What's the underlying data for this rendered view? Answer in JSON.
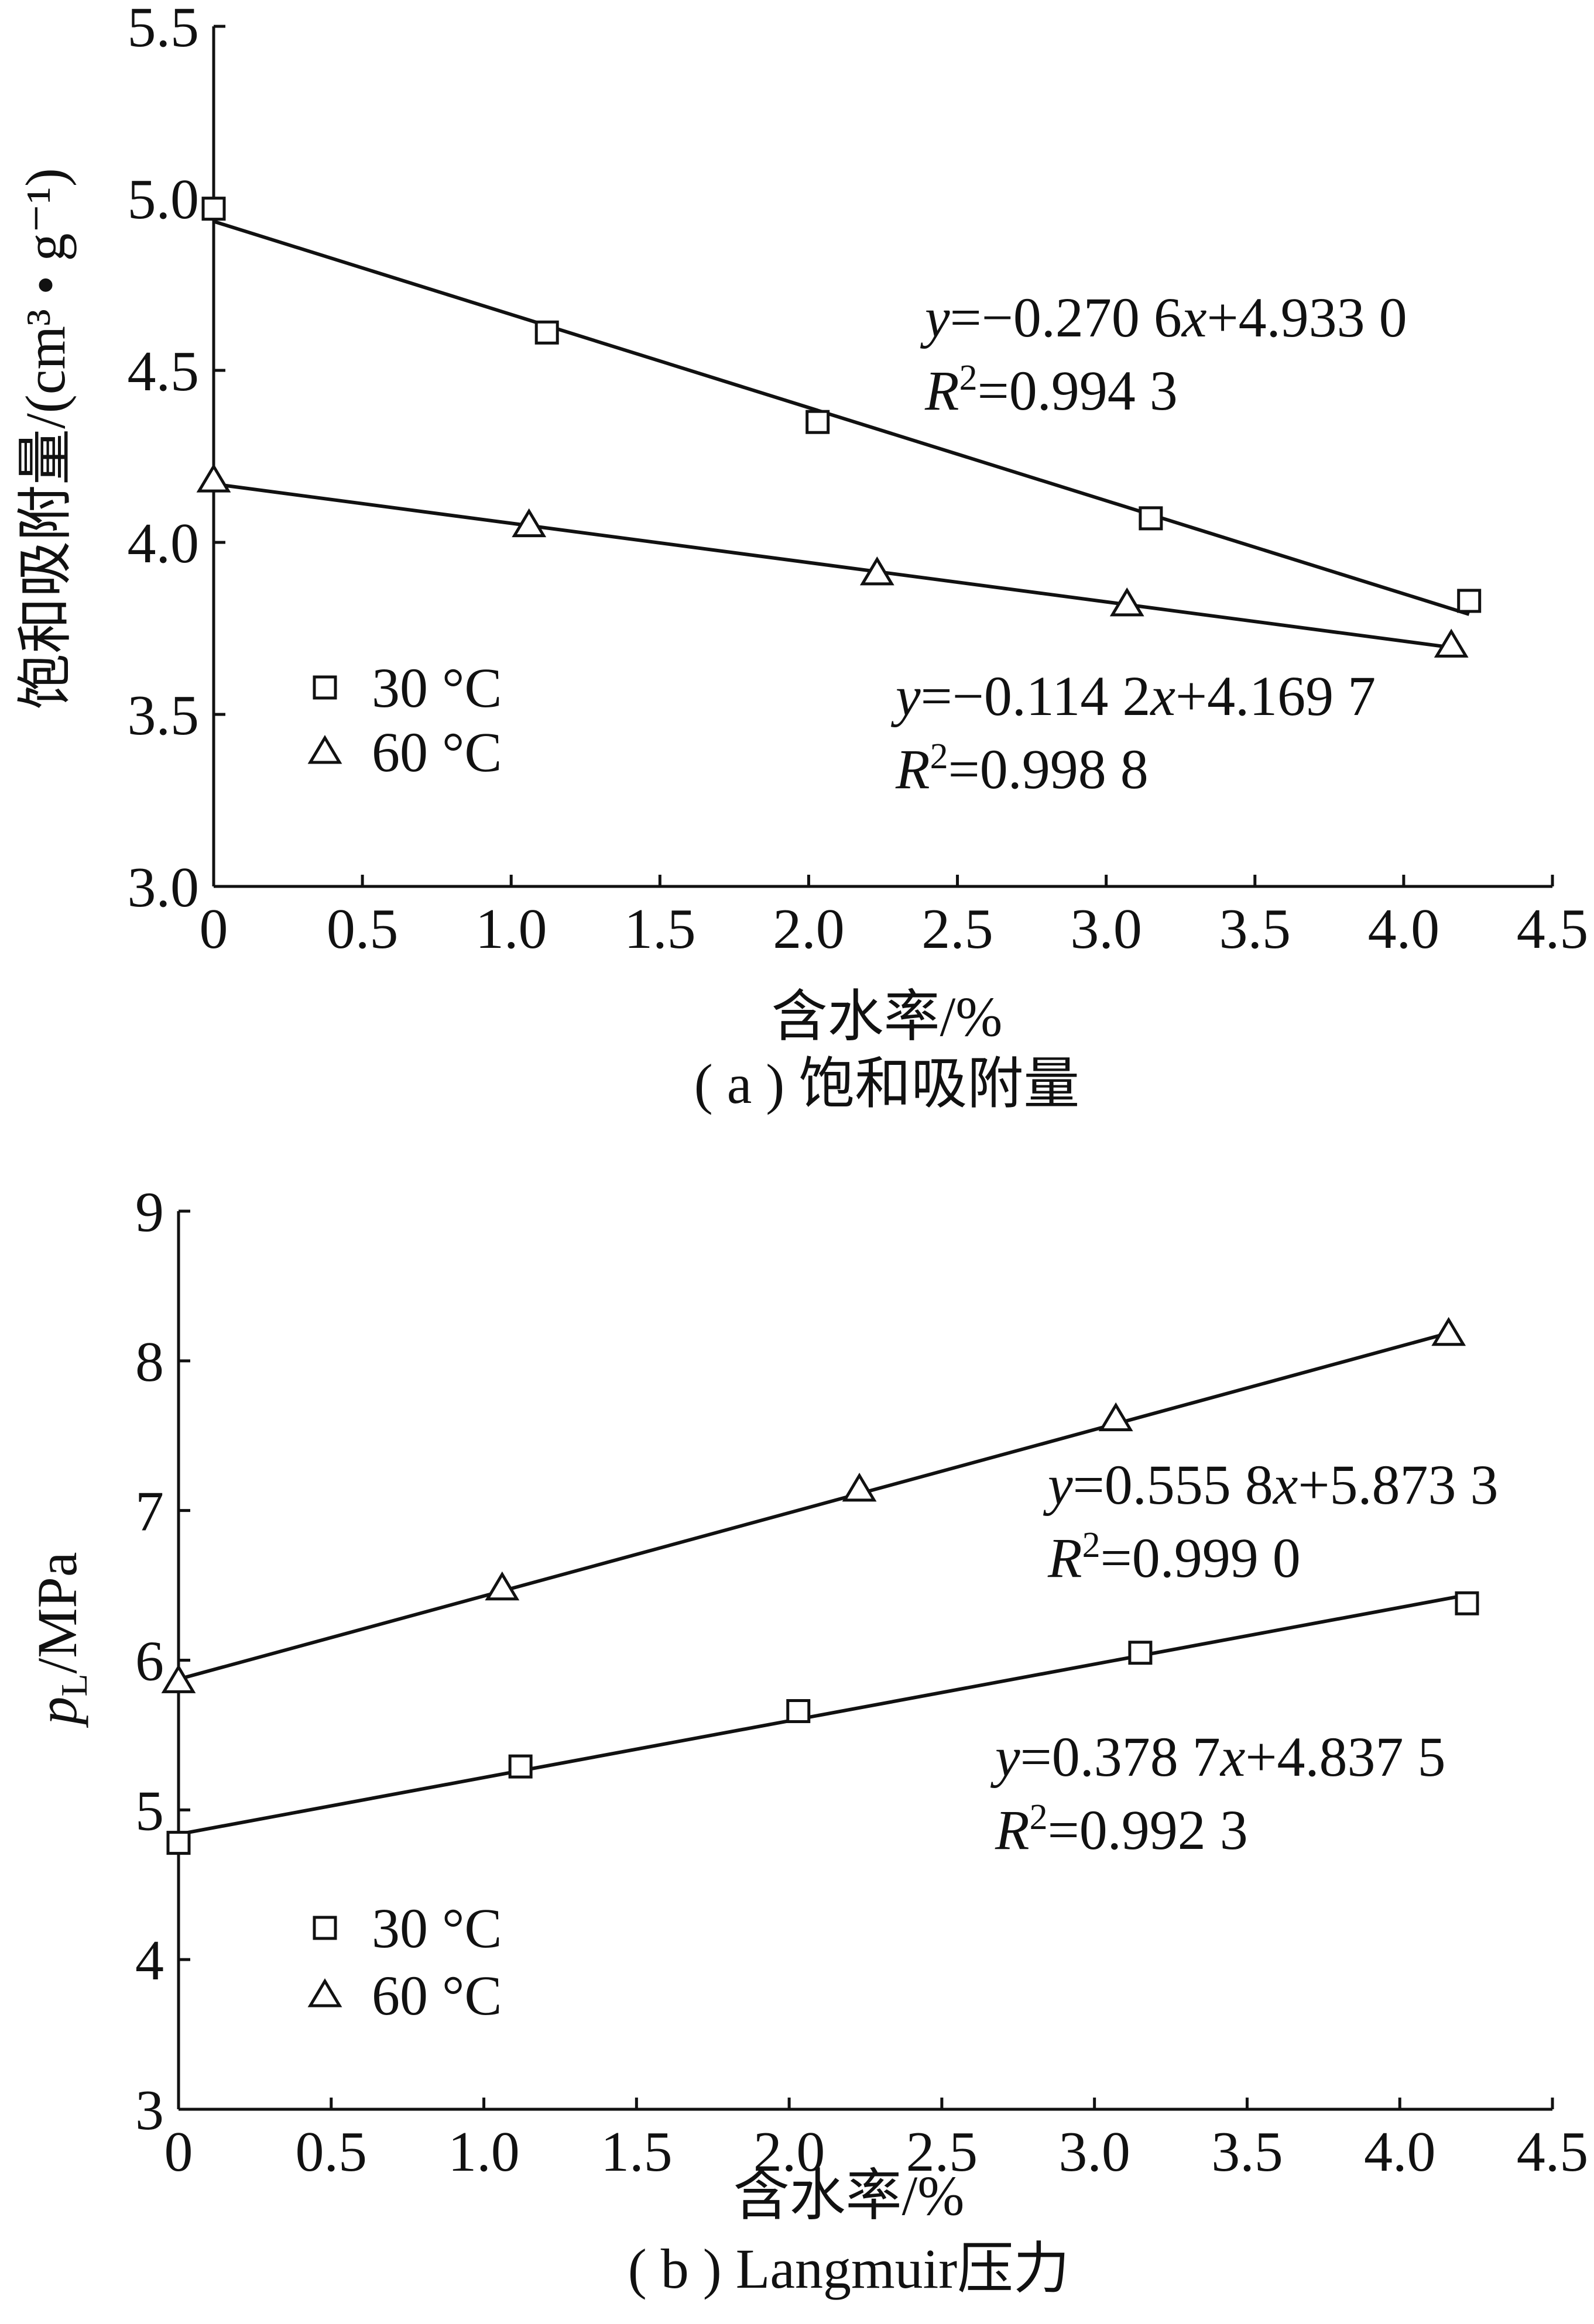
{
  "chart_data": [
    {
      "type": "scatter",
      "caption": "( a ) 饱和吸附量",
      "xlabel": "含水率/%",
      "ylabel": "饱和吸附量/(cm³ • g⁻¹)",
      "xlim": [
        0,
        4.5
      ],
      "ylim": [
        3.0,
        5.5
      ],
      "xticks": [
        "0",
        "0.5",
        "1.0",
        "1.5",
        "2.0",
        "2.5",
        "3.0",
        "3.5",
        "4.0",
        "4.5"
      ],
      "yticks": [
        "3.0",
        "3.5",
        "4.0",
        "4.5",
        "5.0",
        "5.5"
      ],
      "legend_position": "left-center",
      "series": [
        {
          "name": "30 °C",
          "marker": "square",
          "x": [
            0.0,
            1.12,
            2.03,
            3.15,
            4.22
          ],
          "y": [
            4.97,
            4.61,
            4.35,
            4.07,
            3.83
          ],
          "fit": {
            "slope": -0.2706,
            "intercept": 4.933,
            "x_range": [
              0.0,
              4.22
            ]
          },
          "equation": "y=−0.270 6x+4.933 0",
          "r2": "R²=0.994 3"
        },
        {
          "name": "60 °C",
          "marker": "triangle",
          "x": [
            0.0,
            1.06,
            2.23,
            3.07,
            4.16
          ],
          "y": [
            4.18,
            4.05,
            3.91,
            3.82,
            3.7
          ],
          "fit": {
            "slope": -0.1142,
            "intercept": 4.1697,
            "x_range": [
              0.0,
              4.16
            ]
          },
          "equation": "y=−0.114 2x+4.169 7",
          "r2": "R²=0.998 8"
        }
      ]
    },
    {
      "type": "scatter",
      "caption": "( b ) Langmuir压力",
      "xlabel": "含水率/%",
      "ylabel": "pL/MPa",
      "xlim": [
        0,
        4.5
      ],
      "ylim": [
        3,
        9
      ],
      "xticks": [
        "0",
        "0.5",
        "1.0",
        "1.5",
        "2.0",
        "2.5",
        "3.0",
        "3.5",
        "4.0",
        "4.5"
      ],
      "yticks": [
        "3",
        "4",
        "5",
        "6",
        "7",
        "8",
        "9"
      ],
      "legend_position": "bottom-left",
      "series": [
        {
          "name": "30 °C",
          "marker": "square",
          "x": [
            0.0,
            1.12,
            2.03,
            3.15,
            4.22
          ],
          "y": [
            4.78,
            5.29,
            5.66,
            6.05,
            6.38
          ],
          "fit": {
            "slope": 0.3787,
            "intercept": 4.8375,
            "x_range": [
              0.0,
              4.22
            ]
          },
          "equation": "y=0.378 7x+4.837 5",
          "r2": "R²=0.992 3"
        },
        {
          "name": "60 °C",
          "marker": "triangle",
          "x": [
            0.0,
            1.06,
            2.23,
            3.07,
            4.16
          ],
          "y": [
            5.86,
            6.48,
            7.14,
            7.61,
            8.18
          ],
          "fit": {
            "slope": 0.5558,
            "intercept": 5.8733,
            "x_range": [
              0.0,
              4.16
            ]
          },
          "equation": "y=0.555 8x+5.873 3",
          "r2": "R²=0.999 0"
        }
      ]
    }
  ]
}
